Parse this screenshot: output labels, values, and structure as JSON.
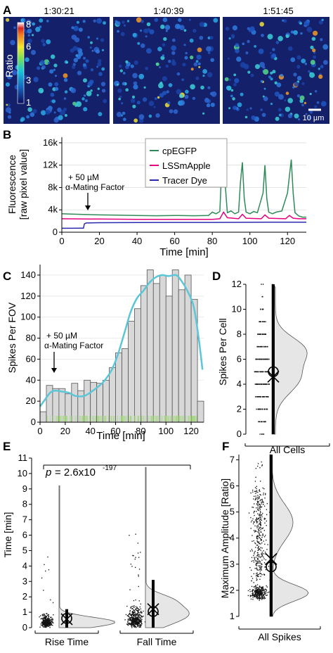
{
  "panel_letters": {
    "a": "A",
    "b": "B",
    "c": "C",
    "d": "D",
    "e": "E",
    "f": "F"
  },
  "panel_a": {
    "timestamps": [
      "1:30:21",
      "1:40:39",
      "1:51:45"
    ],
    "colorbar_label": "Ratio",
    "colorbar_ticks": [
      "8",
      "6",
      "3",
      "1"
    ],
    "colorbar_tick_values": [
      8,
      6,
      3,
      1
    ],
    "scalebar_label": "10 µm"
  },
  "chart_data": [
    {
      "panel": "B",
      "type": "line",
      "xlabel": "Time [min]",
      "ylabel": "Fluorescence",
      "ylabel_line2": "[raw pixel value]",
      "xlim": [
        0,
        130
      ],
      "ylim": [
        0,
        17000
      ],
      "x_ticks": [
        0,
        20,
        40,
        60,
        80,
        100,
        120
      ],
      "y_ticks": [
        0,
        4000,
        8000,
        12000,
        16000
      ],
      "y_tick_labels": [
        "0",
        "4k",
        "8k",
        "12k",
        "16k"
      ],
      "annotation": {
        "line1": "+ 50 µM",
        "line2": "α-Mating Factor",
        "x": 12
      },
      "legend": [
        "cpEGFP",
        "LSSmApple",
        "Tracer Dye"
      ],
      "series": [
        {
          "name": "cpEGFP",
          "color": "#2e8b57",
          "x": [
            0,
            5,
            10,
            20,
            30,
            40,
            50,
            60,
            70,
            78,
            80,
            82,
            84,
            85,
            86,
            87,
            88,
            90,
            92,
            94,
            95,
            96,
            97,
            98,
            100,
            102,
            104,
            107,
            108,
            109,
            110,
            112,
            114,
            117,
            120,
            121,
            122,
            123,
            124,
            126,
            128,
            130
          ],
          "y": [
            3300,
            3250,
            3200,
            3100,
            3050,
            3000,
            2950,
            3000,
            2950,
            3000,
            3600,
            3300,
            3700,
            11000,
            16000,
            8000,
            3500,
            3800,
            3300,
            3600,
            9000,
            12500,
            6000,
            3600,
            3300,
            3700,
            3500,
            7000,
            12000,
            6000,
            3600,
            3300,
            3600,
            3800,
            7000,
            10000,
            13000,
            7000,
            3500,
            2900,
            2700,
            2700
          ]
        },
        {
          "name": "LSSmApple",
          "color": "#e6007e",
          "x": [
            0,
            10,
            20,
            40,
            60,
            80,
            84,
            86,
            88,
            94,
            96,
            98,
            106,
            108,
            110,
            119,
            121,
            123,
            126,
            130
          ],
          "y": [
            2400,
            2380,
            2350,
            2300,
            2300,
            2300,
            2400,
            3600,
            2600,
            2400,
            3200,
            2500,
            2400,
            3100,
            2500,
            2400,
            3000,
            2500,
            2400,
            2400
          ]
        },
        {
          "name": "Tracer Dye",
          "color": "#2a2ab0",
          "x": [
            0,
            5,
            10,
            11.5,
            12,
            13,
            20,
            40,
            60,
            80,
            100,
            120,
            130
          ],
          "y": [
            700,
            700,
            720,
            720,
            1500,
            1650,
            1700,
            1720,
            1750,
            1750,
            1780,
            1800,
            1800
          ]
        }
      ]
    },
    {
      "panel": "C",
      "type": "bar",
      "xlabel": "Time [min]",
      "ylabel": "Spikes Per FOV",
      "xlim": [
        0,
        130
      ],
      "ylim": [
        0,
        150
      ],
      "x_ticks": [
        0,
        20,
        40,
        60,
        80,
        100,
        120
      ],
      "y_ticks": [
        0,
        20,
        40,
        60,
        80,
        100,
        120,
        140
      ],
      "annotation": {
        "line1": "+ 50 µM",
        "line2": "α-Mating Factor",
        "x": 11
      },
      "bin_width": 5,
      "bin_starts": [
        0,
        5,
        10,
        15,
        20,
        25,
        30,
        35,
        40,
        45,
        50,
        55,
        60,
        65,
        70,
        75,
        80,
        85,
        90,
        95,
        100,
        105,
        110,
        115,
        120,
        125
      ],
      "values": [
        10,
        35,
        32,
        32,
        27,
        37,
        30,
        40,
        38,
        37,
        40,
        52,
        66,
        70,
        96,
        108,
        130,
        145,
        132,
        140,
        120,
        145,
        126,
        140,
        117,
        20
      ],
      "smooth_x": [
        0,
        3,
        8,
        12,
        18,
        23,
        28,
        35,
        42,
        50,
        57,
        62,
        67,
        72,
        77,
        82,
        87,
        92,
        97,
        102,
        108,
        112,
        117,
        122,
        126,
        129
      ],
      "smooth_y": [
        15,
        20,
        28,
        30,
        29,
        28,
        25,
        25,
        30,
        38,
        50,
        65,
        85,
        105,
        118,
        125,
        133,
        138,
        140,
        139,
        140,
        135,
        125,
        110,
        80,
        50
      ],
      "smooth_color": "#5bc6d8"
    },
    {
      "panel": "D",
      "type": "violin",
      "xlabel": "All Cells",
      "ylabel": "Spikes Per Cell",
      "ylim": [
        0,
        12
      ],
      "y_ticks": [
        0,
        2,
        4,
        6,
        8,
        10,
        12
      ],
      "median": 5,
      "mean": 4.6,
      "range": [
        0,
        12
      ]
    },
    {
      "panel": "E",
      "type": "violin",
      "ylabel": "Time [min]",
      "ylim": [
        0,
        11
      ],
      "y_ticks": [
        0,
        1,
        2,
        3,
        4,
        5,
        6,
        7,
        8,
        9,
        10,
        11
      ],
      "p_label": "p",
      "p_value": "= 2.6x10",
      "p_exponent": "-197",
      "groups": [
        {
          "name": "Rise Time",
          "median": 0.6,
          "mean": 0.55,
          "range": [
            0,
            1.2
          ],
          "max": 9.2
        },
        {
          "name": "Fall Time",
          "median": 1.05,
          "mean": 1.2,
          "range": [
            0,
            3.1
          ],
          "max": 10.4
        }
      ]
    },
    {
      "panel": "F",
      "type": "violin",
      "xlabel": "All Spikes",
      "ylabel": "Maximum Amplitude [Ratio]",
      "ylim": [
        1,
        7.2
      ],
      "y_ticks": [
        1,
        2,
        3,
        4,
        5,
        6,
        7
      ],
      "median": 2.9,
      "mean": 3.2,
      "range": [
        1,
        7.2
      ]
    }
  ]
}
